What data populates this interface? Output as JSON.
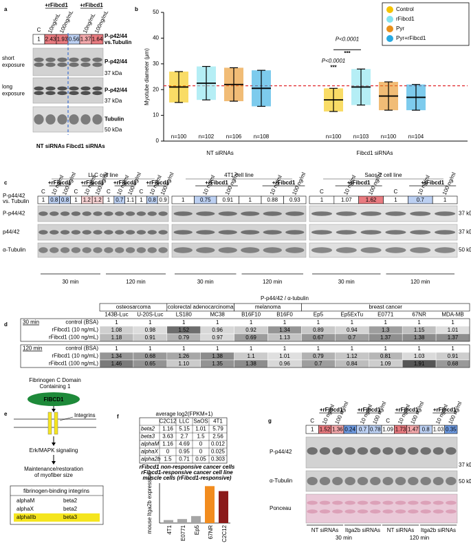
{
  "panel_labels": [
    "a",
    "b",
    "c",
    "d",
    "e",
    "f",
    "g"
  ],
  "panel_a": {
    "plus_labels": [
      "+rFibcd1",
      "+rFibcd1"
    ],
    "lanes": [
      "C",
      "10ng/mL",
      "100ng/mL",
      null,
      "10ng/mL",
      "100ng/mL"
    ],
    "ratios": [
      1,
      2.43,
      1.93,
      0.56,
      1.37,
      1.64
    ],
    "ratio_label": [
      "P-p42/44",
      "vs.Tubulin"
    ],
    "rows": [
      {
        "left": [
          "short",
          "exposure"
        ],
        "right": "P-p42/44",
        "kda": "37 kDa"
      },
      {
        "left": [
          "long",
          "exposure"
        ],
        "right": "P-p42/44",
        "kda": "37 kDa"
      },
      {
        "right": "Tubulin",
        "kda": "50 kDa"
      }
    ],
    "groups": [
      "NT siRNAs",
      "Fibcd1 siRNAs"
    ]
  },
  "chart_data": [
    {
      "type": "dot",
      "ylabel": "Myotube diameter (μm)",
      "groups": [
        "NT siRNAs",
        "Fibcd1 siRNAs"
      ],
      "series": [
        {
          "name": "Control",
          "color": "#f5c400",
          "values": [
            21,
            16
          ],
          "sd": [
            6,
            4.5
          ],
          "n_labels": [
            "n=100",
            "n=100"
          ]
        },
        {
          "name": "rFibcd1",
          "color": "#84e3ef",
          "values": [
            22.5,
            21
          ],
          "sd": [
            6.5,
            7
          ],
          "n_labels": [
            "n=102",
            "n=103"
          ]
        },
        {
          "name": "Pyr",
          "color": "#e8901a",
          "values": [
            22,
            17.5
          ],
          "sd": [
            6.5,
            5.5
          ],
          "n_labels": [
            "n=106",
            "n=100"
          ]
        },
        {
          "name": "Pyr+rFibcd1",
          "color": "#27a9e1",
          "values": [
            20.5,
            17
          ],
          "sd": [
            7,
            5
          ],
          "n_labels": [
            "n=108",
            "n=104"
          ]
        }
      ],
      "ylim": [
        0,
        50
      ],
      "yticks": [
        0,
        10,
        20,
        30,
        40,
        50
      ],
      "reference_line": 21.5,
      "annotations": [
        "P<0.0001",
        "***",
        "P<0.0001",
        "***"
      ],
      "legend": "top-right"
    },
    {
      "type": "bar",
      "ylabel": "mouse Itga2b expression",
      "categories": [
        "4T1",
        "E0771",
        "Ep5",
        "67NR",
        "C2C12"
      ],
      "values": [
        0.3,
        0.4,
        0.7,
        3.7,
        3.2
      ],
      "colors": [
        "#a6a6a6",
        "#a6a6a6",
        "#a6a6a6",
        "#f28c1e",
        "#8b1a1a"
      ],
      "ylim": [
        0,
        4
      ],
      "legend": [
        {
          "name": "rFibcd1 non-responsive cancer cells",
          "color": "#9a9a9a"
        },
        {
          "name": "rFibcd1-responsive cancer cell line",
          "color": "#f28c1e"
        },
        {
          "name": "muscle cells (rFibcd1-responsive)",
          "color": "#8b1a1a"
        }
      ]
    }
  ],
  "panel_c": {
    "ratio_label": [
      "P-p44/42",
      "vs. Tubulin"
    ],
    "rows": [
      "P-p44/42",
      "p44/42",
      "α-Tubulin"
    ],
    "kda": [
      "37 kDa",
      "37 kDa",
      "50 kDa"
    ],
    "blocks": [
      {
        "title": "LLC cell line",
        "plus_labels": [
          "+rFibcd1",
          "+rFibcd1",
          "+rFibcd1",
          "+rFibcd1"
        ],
        "lanes": [
          "C",
          "10 ng/ml",
          "100 ng/ml",
          "C",
          "10 ng/ml",
          "100 ng/ml",
          "C",
          "10 ng/ml",
          "100 ng/ml",
          "C",
          "10 ng/ml",
          "100 ng/ml"
        ],
        "ratios": [
          1,
          0.8,
          0.8,
          1,
          1.2,
          1.2,
          1,
          0.7,
          1.1,
          1,
          0.8,
          0.9
        ],
        "times": [
          "30 min",
          "120 min"
        ]
      },
      {
        "title": "4T1 cell line",
        "plus_labels": [
          "+rFibcd1",
          "+rFibcd1"
        ],
        "lanes": [
          null,
          "10 ng/ml",
          "100 ng/ml",
          null,
          "10 ng/ml",
          "100 ng/ml"
        ],
        "ratios": [
          1,
          0.75,
          0.91,
          1,
          0.88,
          0.93
        ],
        "times": [
          "30 min",
          "120 min"
        ]
      },
      {
        "title": "Saos-2 cell line",
        "plus_labels": [
          "+rFibcd1",
          "+rFibcd1"
        ],
        "lanes": [
          "C",
          "10 ng/ml",
          "100 ng/ml",
          "C",
          "10 ng/ml",
          "100 ng/ml"
        ],
        "ratios": [
          1,
          1.07,
          1.62,
          1,
          0.7,
          1
        ],
        "times": [
          "30 min",
          "120 min"
        ]
      }
    ]
  },
  "panel_d": {
    "header": "P-p44/42 / α-tubulin",
    "groups": [
      {
        "name": "osteosarcoma",
        "cells": [
          "143B-Luc",
          "U-20S-Luc"
        ]
      },
      {
        "name": "colorectal adenocarcinoma",
        "cells": [
          "LS180",
          "MC38"
        ]
      },
      {
        "name": "melanoma",
        "cells": [
          "B16F10",
          "B16F0"
        ]
      },
      {
        "name": "breast cancer",
        "cells": [
          "Ep5",
          "Ep5ExTu",
          "E0771",
          "67NR",
          "MDA-MB"
        ]
      }
    ],
    "blocks": [
      {
        "time": "30 min",
        "rows": [
          {
            "label": "control (BSA)",
            "values": [
              "1",
              "1",
              "1",
              "1",
              "1",
              "1",
              "1",
              "1",
              "1",
              "1",
              "1"
            ]
          },
          {
            "label": "rFibcd1 (10 ng/mL)",
            "values": [
              "1.08",
              "0.98",
              "1.52",
              "0.96",
              "0.92",
              "1.34",
              "0.89",
              "0.94",
              "1.3",
              "1.15",
              "1.01"
            ]
          },
          {
            "label": "rFibcd1 (100 ng/mL)",
            "values": [
              "1.18",
              "0.91",
              "0.79",
              "0.97",
              "0.69",
              "1.13",
              "0.67",
              "0.7",
              "1.37",
              "1.38",
              "1.37"
            ]
          }
        ]
      },
      {
        "time": "120 min",
        "rows": [
          {
            "label": "control (BSA)",
            "values": [
              "1",
              "1",
              "1",
              "1",
              "1",
              "1",
              "1",
              "1",
              "1",
              "1",
              "1"
            ]
          },
          {
            "label": "rFibcd1 (10 ng/mL)",
            "values": [
              "1.34",
              "0.68",
              "1.26",
              "1.38",
              "1.1",
              "1.01",
              "0.79",
              "1.12",
              "0.81",
              "1.03",
              "0.91"
            ]
          },
          {
            "label": "rFibcd1 (100 ng/mL)",
            "values": [
              "1.46",
              "0.65",
              "1.10",
              "1.35",
              "1.38",
              "0.96",
              "0.7",
              "0.84",
              "1.09",
              "1.91",
              "0.68"
            ]
          }
        ]
      }
    ]
  },
  "panel_e": {
    "title": [
      "Fibrinogen C Domain",
      "Containing 1"
    ],
    "protein": "FIBCD1",
    "integrins": "Integrins",
    "signaling": "Erk/MAPK signaling",
    "outcome": [
      "Maintenance/restoration",
      "of myofiber size"
    ],
    "table_title": "fibrinogen-binding integrins",
    "table": [
      [
        "alphaM",
        "beta2"
      ],
      [
        "alphaX",
        "beta2"
      ],
      [
        "alphaIIb",
        "beta3"
      ]
    ]
  },
  "panel_f": {
    "table_title": "average log2(FPKM+1)",
    "columns": [
      "C2C12",
      "LLC",
      "SaOS",
      "4T1"
    ],
    "rows": [
      {
        "label": "beta2",
        "values": [
          1.16,
          5.15,
          1.01,
          5.79
        ]
      },
      {
        "label": "beta3",
        "values": [
          3.63,
          2.7,
          1.5,
          2.56
        ]
      },
      {
        "label": "alphaM",
        "values": [
          1.16,
          4.69,
          0,
          0.012
        ]
      },
      {
        "label": "alphaX",
        "values": [
          0,
          0.95,
          0,
          0.025
        ]
      },
      {
        "label": "alpha2b",
        "values": [
          1.5,
          0.71,
          0.05,
          0.303
        ]
      }
    ]
  },
  "panel_g": {
    "plus_labels": [
      "+rFibcd1",
      "+rFibcd1",
      "+rFibcd1",
      "+rFibcd1"
    ],
    "lanes": [
      "C",
      "10 ng/ml",
      "100 ng/ml",
      null,
      "10 ng/ml",
      "100 ng/ml",
      "C",
      "10 ng/ml",
      "100 ng/ml",
      null,
      "10 ng/ml",
      "100 ng/ml"
    ],
    "ratios": [
      1,
      1.52,
      1.36,
      0.24,
      0.7,
      0.78,
      1.09,
      1.73,
      1.47,
      0.8,
      1.03,
      0.35
    ],
    "rows": [
      "P-p44/42",
      "α-Tubulin",
      "Ponceau"
    ],
    "kda": [
      "37 kDa",
      "50 kDa"
    ],
    "groups": [
      "NT siRNAs",
      "Itga2b siRNAs",
      "NT siRNAs",
      "Itga2b siRNAs"
    ],
    "times": [
      "30 min",
      "120 min"
    ]
  }
}
